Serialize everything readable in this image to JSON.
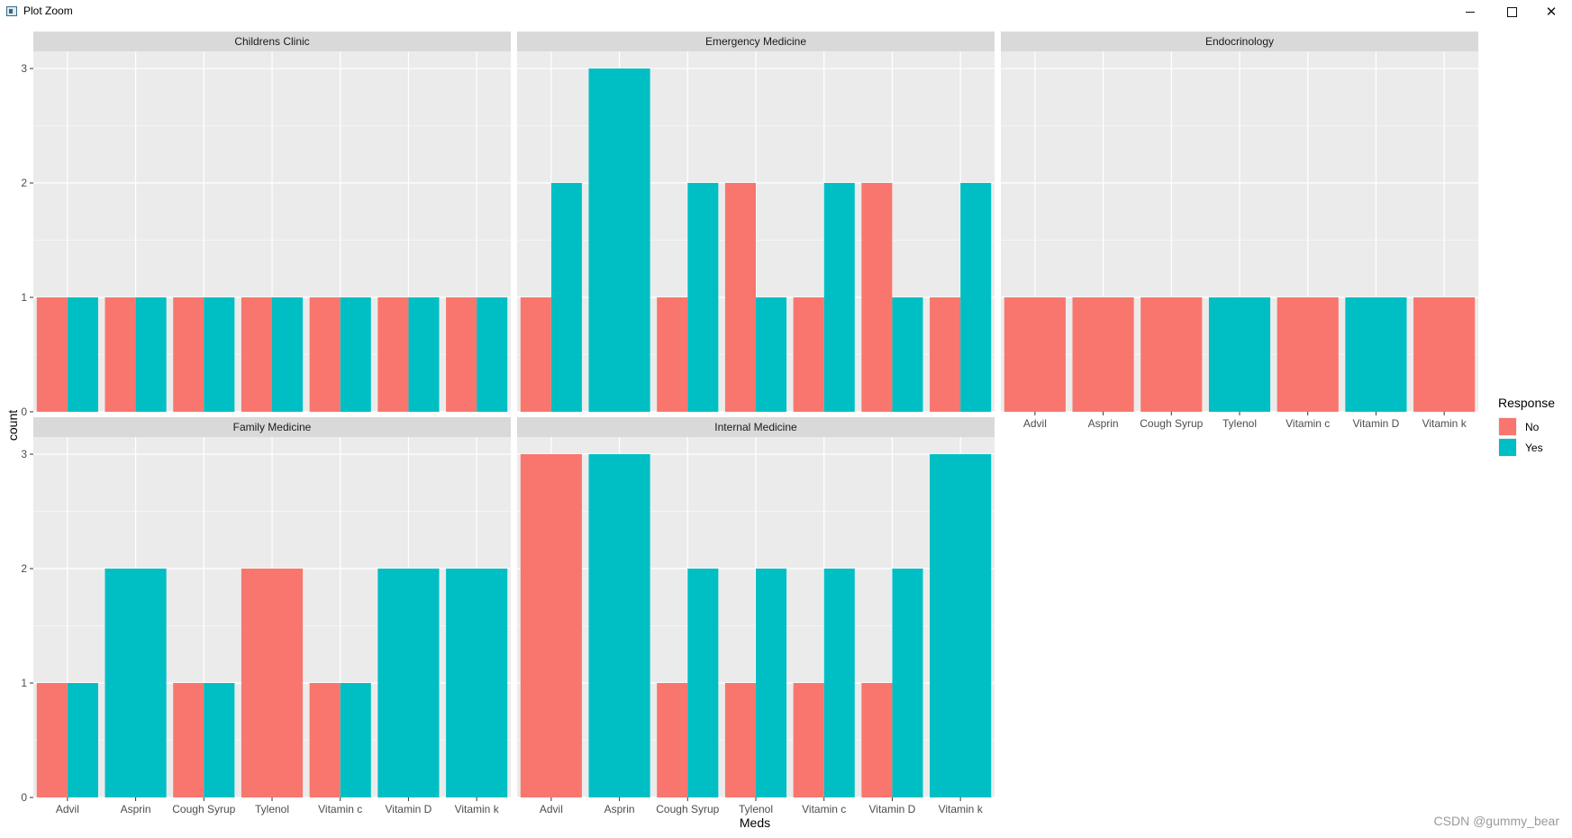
{
  "window": {
    "title": "Plot Zoom"
  },
  "colors": {
    "No": "#F8766D",
    "Yes": "#00BFC4"
  },
  "chart_data": {
    "type": "bar",
    "layout": "faceted grouped bar (facet_wrap, 3 columns, 2 rows)",
    "xlabel": "Meds",
    "ylabel": "count",
    "ylim": [
      0,
      3
    ],
    "yticks": [
      0,
      1,
      2,
      3
    ],
    "categories": [
      "Advil",
      "Asprin",
      "Cough Syrup",
      "Tylenol",
      "Vitamin c",
      "Vitamin D",
      "Vitamin k"
    ],
    "legend": {
      "title": "Response",
      "entries": [
        "No",
        "Yes"
      ],
      "position": "right"
    },
    "watermark": "CSDN @gummy_bear",
    "facets": [
      {
        "title": "Childrens Clinic",
        "series": [
          {
            "name": "No",
            "values": [
              1,
              1,
              1,
              1,
              1,
              1,
              1
            ]
          },
          {
            "name": "Yes",
            "values": [
              1,
              1,
              1,
              1,
              1,
              1,
              1
            ]
          }
        ]
      },
      {
        "title": "Emergency Medicine",
        "series": [
          {
            "name": "No",
            "values": [
              1,
              0,
              1,
              2,
              1,
              2,
              1
            ]
          },
          {
            "name": "Yes",
            "values": [
              2,
              3,
              2,
              1,
              2,
              1,
              2
            ]
          }
        ]
      },
      {
        "title": "Endocrinology",
        "series": [
          {
            "name": "No",
            "values": [
              1,
              1,
              1,
              0,
              1,
              0,
              1
            ]
          },
          {
            "name": "Yes",
            "values": [
              0,
              0,
              0,
              1,
              0,
              1,
              0
            ]
          }
        ]
      },
      {
        "title": "Family Medicine",
        "series": [
          {
            "name": "No",
            "values": [
              1,
              0,
              1,
              2,
              1,
              0,
              0
            ]
          },
          {
            "name": "Yes",
            "values": [
              1,
              2,
              1,
              0,
              1,
              2,
              2
            ]
          }
        ]
      },
      {
        "title": "Internal Medicine",
        "series": [
          {
            "name": "No",
            "values": [
              3,
              0,
              1,
              1,
              1,
              1,
              0
            ]
          },
          {
            "name": "Yes",
            "values": [
              0,
              3,
              2,
              2,
              2,
              2,
              3
            ]
          }
        ]
      }
    ]
  }
}
